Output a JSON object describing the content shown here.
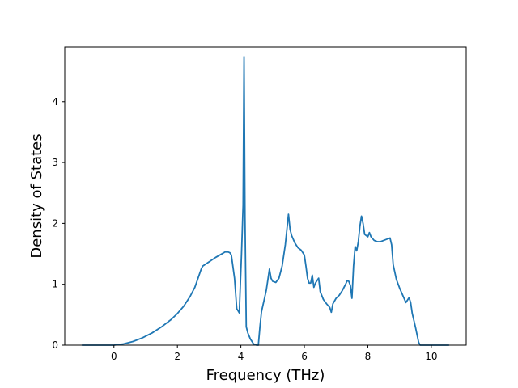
{
  "chart_data": {
    "type": "line",
    "title": "",
    "xlabel": "Frequency (THz)",
    "ylabel": "Density of States",
    "xlim": [
      -1.55,
      11.1
    ],
    "ylim": [
      0,
      4.9
    ],
    "xticks": [
      0,
      2,
      4,
      6,
      8,
      10
    ],
    "xtick_labels": [
      "0",
      "2",
      "4",
      "6",
      "8",
      "10"
    ],
    "yticks": [
      0,
      1,
      2,
      3,
      4
    ],
    "ytick_labels": [
      "0",
      "1",
      "2",
      "3",
      "4"
    ],
    "grid": false,
    "legend": false,
    "series": [
      {
        "color": "#1f77b4",
        "x": [
          -1.0,
          -0.5,
          0.0,
          0.3,
          0.6,
          0.9,
          1.2,
          1.5,
          1.8,
          2.0,
          2.2,
          2.4,
          2.55,
          2.65,
          2.75,
          2.8,
          3.0,
          3.2,
          3.4,
          3.5,
          3.6,
          3.65,
          3.7,
          3.8,
          3.87,
          3.95,
          4.02,
          4.07,
          4.1,
          4.13,
          4.17,
          4.22,
          4.3,
          4.4,
          4.5,
          4.55,
          4.6,
          4.65,
          4.8,
          4.9,
          4.95,
          5.0,
          5.1,
          5.2,
          5.3,
          5.4,
          5.45,
          5.5,
          5.55,
          5.6,
          5.7,
          5.8,
          5.9,
          6.0,
          6.05,
          6.1,
          6.15,
          6.2,
          6.25,
          6.3,
          6.35,
          6.45,
          6.5,
          6.6,
          6.7,
          6.8,
          6.85,
          6.9,
          7.0,
          7.1,
          7.2,
          7.3,
          7.35,
          7.4,
          7.45,
          7.5,
          7.55,
          7.6,
          7.65,
          7.7,
          7.75,
          7.8,
          7.85,
          7.9,
          8.0,
          8.05,
          8.1,
          8.2,
          8.3,
          8.4,
          8.5,
          8.6,
          8.7,
          8.75,
          8.8,
          8.9,
          9.0,
          9.1,
          9.2,
          9.3,
          9.35,
          9.4,
          9.5,
          9.6,
          9.65,
          10.0,
          10.3,
          10.55
        ],
        "y": [
          0.0,
          0.0,
          0.0,
          0.02,
          0.06,
          0.12,
          0.2,
          0.3,
          0.42,
          0.52,
          0.64,
          0.8,
          0.95,
          1.1,
          1.25,
          1.3,
          1.37,
          1.44,
          1.5,
          1.53,
          1.53,
          1.52,
          1.48,
          1.1,
          0.6,
          0.53,
          1.5,
          2.3,
          4.74,
          2.1,
          0.3,
          0.2,
          0.1,
          0.02,
          0.0,
          0.0,
          0.3,
          0.55,
          0.9,
          1.25,
          1.1,
          1.05,
          1.03,
          1.1,
          1.3,
          1.65,
          1.9,
          2.15,
          1.9,
          1.8,
          1.68,
          1.6,
          1.56,
          1.48,
          1.3,
          1.1,
          1.02,
          1.02,
          1.15,
          0.95,
          1.02,
          1.1,
          0.88,
          0.75,
          0.68,
          0.62,
          0.54,
          0.68,
          0.77,
          0.82,
          0.9,
          1.0,
          1.06,
          1.05,
          0.98,
          0.77,
          1.3,
          1.62,
          1.55,
          1.7,
          1.95,
          2.12,
          2.0,
          1.82,
          1.78,
          1.85,
          1.78,
          1.72,
          1.7,
          1.7,
          1.72,
          1.74,
          1.76,
          1.65,
          1.32,
          1.08,
          0.94,
          0.82,
          0.7,
          0.78,
          0.7,
          0.52,
          0.3,
          0.05,
          0.0,
          0.0,
          0.0,
          0.0
        ]
      }
    ]
  }
}
